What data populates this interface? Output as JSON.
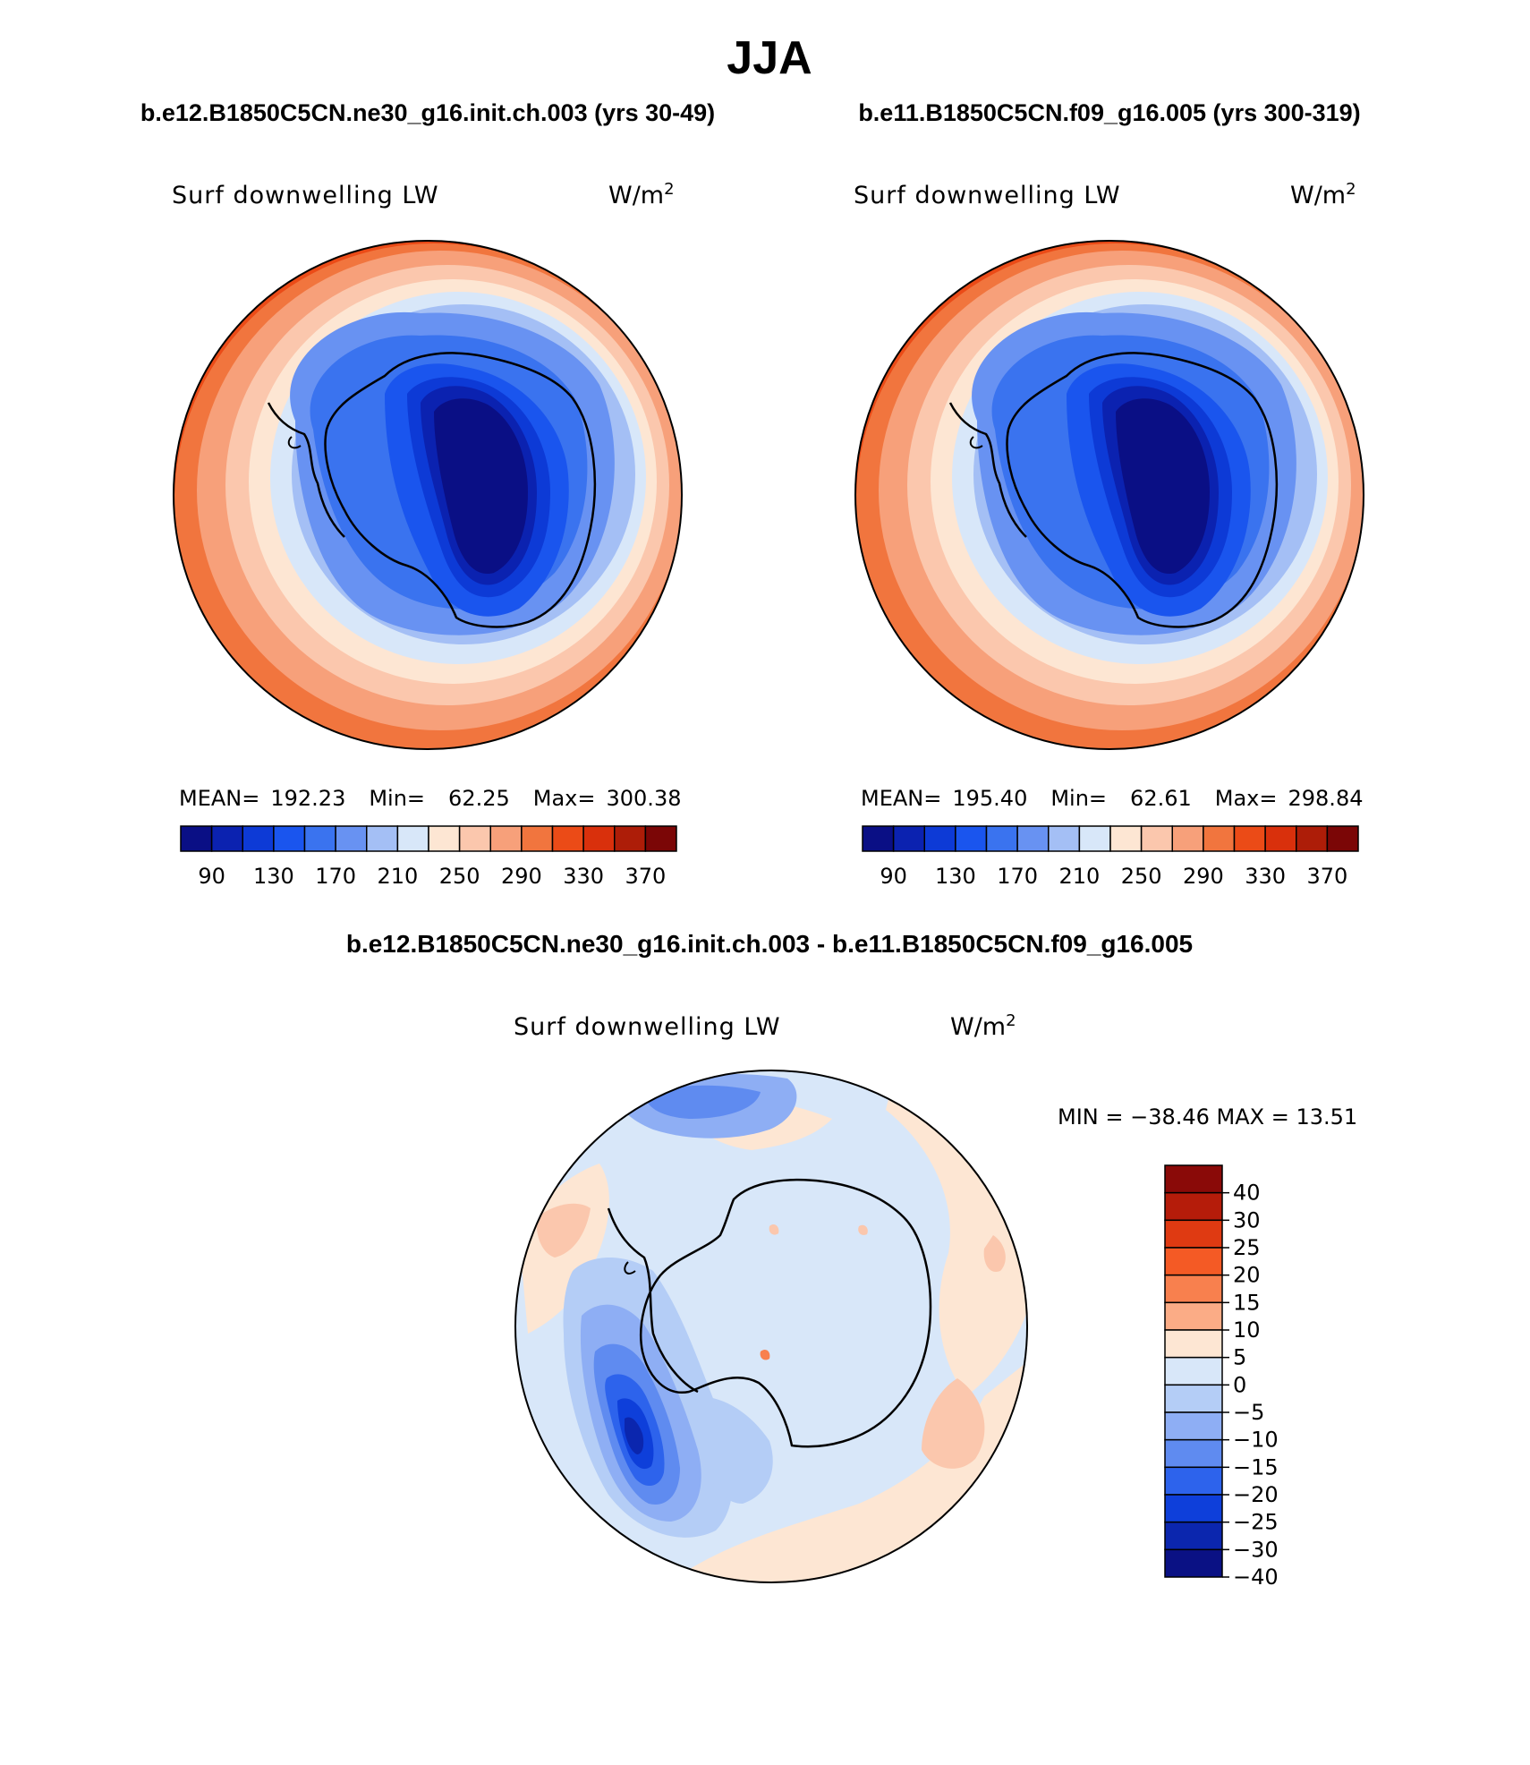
{
  "figure_title": "JJA",
  "panels": [
    {
      "case_title": "b.e12.B1850C5CN.ne30_g16.init.ch.003 (yrs 30-49)",
      "variable": "Surf downwelling LW",
      "units": "W/m",
      "units_superscript": "2",
      "stats": {
        "mean_label": "MEAN=",
        "mean": "192.23",
        "min_label": "Min=",
        "min": "62.25",
        "max_label": "Max=",
        "max": "300.38"
      }
    },
    {
      "case_title": "b.e11.B1850C5CN.f09_g16.005 (yrs 300-319)",
      "variable": "Surf downwelling LW",
      "units": "W/m",
      "units_superscript": "2",
      "stats": {
        "mean_label": "MEAN=",
        "mean": "195.40",
        "min_label": "Min=",
        "min": "62.61",
        "max_label": "Max=",
        "max": "298.84"
      }
    }
  ],
  "abs_colorbar": {
    "colors": [
      "#0a0f85",
      "#0b22b0",
      "#0d3ad6",
      "#1a55ee",
      "#3a73ef",
      "#6892f2",
      "#a4bff5",
      "#d8e7f9",
      "#fde6d3",
      "#fbc7ad",
      "#f7a07a",
      "#f1753e",
      "#eb4b17",
      "#d9300c",
      "#ad1d08",
      "#7b0606"
    ],
    "tick_labels": [
      "90",
      "130",
      "170",
      "210",
      "250",
      "290",
      "330",
      "370"
    ]
  },
  "difference": {
    "title": "b.e12.B1850C5CN.ne30_g16.init.ch.003 - b.e11.B1850C5CN.f09_g16.005",
    "variable": "Surf downwelling LW",
    "units": "W/m",
    "units_superscript": "2",
    "min_max": "MIN = −38.46 MAX =   13.51",
    "min": -38.46,
    "max": 13.51,
    "colorbar": {
      "colors_top_to_bottom": [
        "#8a0a08",
        "#b51c0a",
        "#df3a12",
        "#f45a25",
        "#f8804e",
        "#fbac86",
        "#fde6d3",
        "#d8e7f9",
        "#b4cdf6",
        "#8eaef4",
        "#5f8bf0",
        "#2d63ec",
        "#0e3fda",
        "#0b26ae",
        "#0a1184"
      ],
      "tick_labels": [
        "40",
        "30",
        "25",
        "20",
        "15",
        "10",
        "5",
        "0",
        "−5",
        "−10",
        "−15",
        "−20",
        "−25",
        "−30",
        "−40"
      ]
    },
    "field_colors": {
      "background": "#d8e7f9",
      "positive": "#fde6d3",
      "positive2": "#fbc7ad",
      "neg1": "#b4cdf6",
      "neg2": "#8eaef4",
      "neg3": "#5f8bf0",
      "neg4": "#2d63ec",
      "neg5": "#0e3fda",
      "neg6": "#0b26ae",
      "neg7": "#0a1184",
      "coast": "#000000"
    }
  }
}
